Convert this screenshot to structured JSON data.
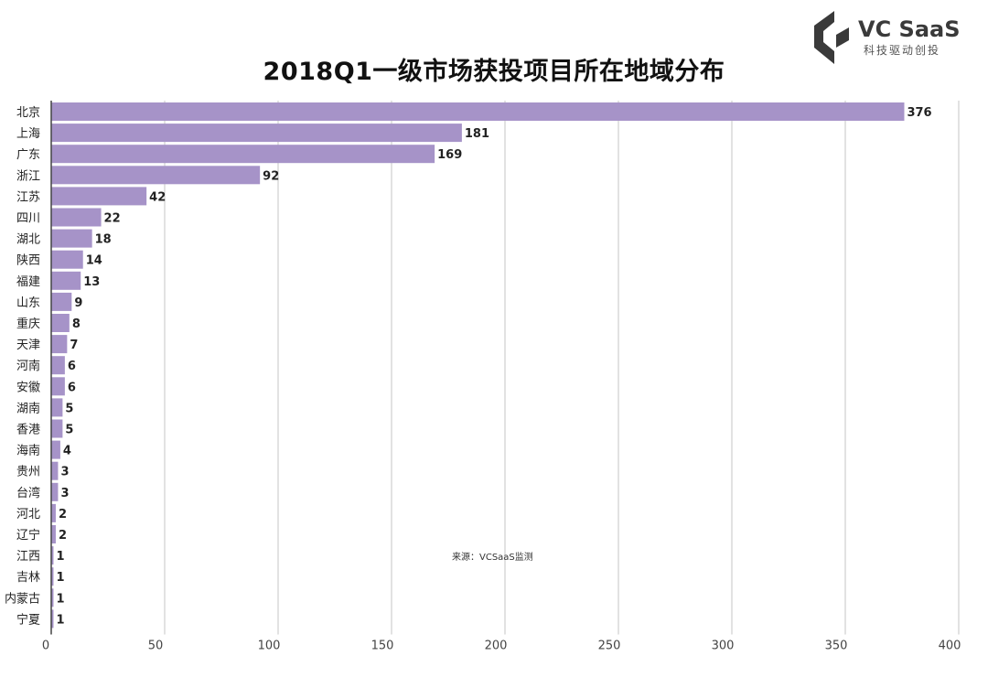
{
  "chart_data": {
    "type": "bar",
    "orientation": "horizontal",
    "title": "2018Q1一级市场获投项目所在地域分布",
    "categories": [
      "北京",
      "上海",
      "广东",
      "浙江",
      "江苏",
      "四川",
      "湖北",
      "陕西",
      "福建",
      "山东",
      "重庆",
      "天津",
      "河南",
      "安徽",
      "湖南",
      "香港",
      "海南",
      "贵州",
      "台湾",
      "河北",
      "辽宁",
      "江西",
      "吉林",
      "内蒙古",
      "宁夏"
    ],
    "values": [
      376,
      181,
      169,
      92,
      42,
      22,
      18,
      14,
      13,
      9,
      8,
      7,
      6,
      6,
      5,
      5,
      4,
      3,
      3,
      2,
      2,
      1,
      1,
      1,
      1
    ],
    "xlim": [
      0,
      400
    ],
    "xticks": [
      0,
      50,
      100,
      150,
      200,
      250,
      300,
      350,
      400
    ],
    "grid": true,
    "bar_color": "#a693c8",
    "data_labels": true
  },
  "brand": {
    "name": "VC SaaS",
    "tagline": "科技驱动创投",
    "color": "#3a3a3a"
  },
  "source": "来源：VCSaaS监测"
}
